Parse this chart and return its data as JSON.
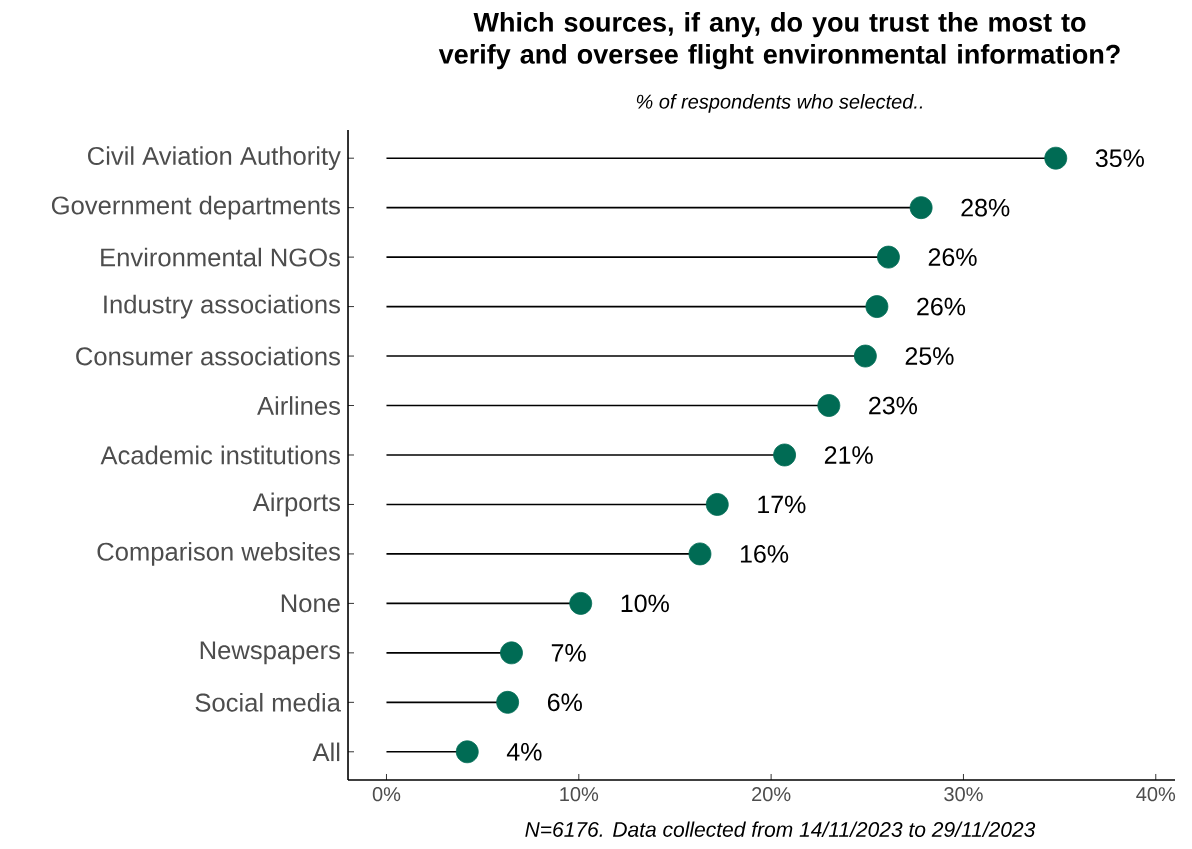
{
  "chart_data": {
    "type": "lollipop",
    "orientation": "horizontal",
    "title": "Which sources, if any, do you trust the most to verify and oversee flight environmental information?",
    "subtitle": "% of respondents who selected..",
    "categories": [
      "Civil Aviation Authority",
      "Government departments",
      "Environmental NGOs",
      "Industry associations",
      "Consumer associations",
      "Airlines",
      "Academic institutions",
      "Airports",
      "Comparison websites",
      "None",
      "Newspapers",
      "Social media",
      "All"
    ],
    "values": [
      34.8,
      27.8,
      26.1,
      25.5,
      24.9,
      23.0,
      20.7,
      17.2,
      16.3,
      10.1,
      6.5,
      6.3,
      4.2
    ],
    "value_labels": [
      "35%",
      "28%",
      "26%",
      "26%",
      "25%",
      "23%",
      "21%",
      "17%",
      "16%",
      "10%",
      "7%",
      "6%",
      "4%"
    ],
    "color": "#006b54",
    "xlim": [
      -2,
      41
    ],
    "xticks": [
      {
        "value": 0,
        "label": "0%"
      },
      {
        "value": 10,
        "label": "10%"
      },
      {
        "value": 20,
        "label": "20%"
      },
      {
        "value": 30,
        "label": "30%"
      },
      {
        "value": 40,
        "label": "40%"
      }
    ],
    "annotations": [
      "N=6176. Data collected from 14/11/2023 to 29/11/2023"
    ]
  }
}
